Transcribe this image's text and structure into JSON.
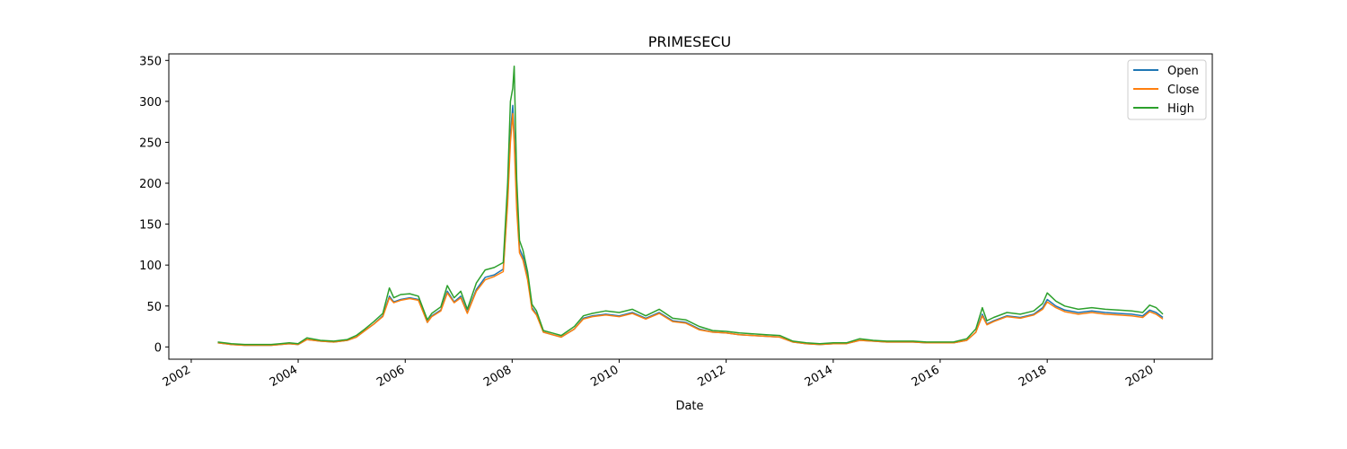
{
  "chart_data": {
    "type": "line",
    "title": "PRIMESECU",
    "xlabel": "Date",
    "ylabel": "",
    "xlim": [
      "2001-08-01",
      "2021-02-01"
    ],
    "ylim": [
      -15,
      358
    ],
    "x_ticks": [
      "2002",
      "2004",
      "2006",
      "2008",
      "2010",
      "2012",
      "2014",
      "2016",
      "2018",
      "2020"
    ],
    "y_ticks": [
      0,
      50,
      100,
      150,
      200,
      250,
      300,
      350
    ],
    "grid": false,
    "legend_position": "top-right",
    "colors": {
      "Open": "#1f77b4",
      "Close": "#ff7f0e",
      "High": "#2ca02c"
    },
    "x": [
      "2002-07-01",
      "2002-10-01",
      "2003-01-01",
      "2003-04-01",
      "2003-07-01",
      "2003-09-01",
      "2003-11-01",
      "2004-01-01",
      "2004-03-01",
      "2004-06-01",
      "2004-09-01",
      "2004-12-01",
      "2005-02-01",
      "2005-04-01",
      "2005-06-01",
      "2005-08-01",
      "2005-09-15",
      "2005-10-15",
      "2005-12-01",
      "2006-02-01",
      "2006-04-01",
      "2006-06-01",
      "2006-07-01",
      "2006-09-01",
      "2006-10-15",
      "2006-12-01",
      "2007-01-15",
      "2007-03-01",
      "2007-05-01",
      "2007-07-01",
      "2007-09-01",
      "2007-11-01",
      "2007-12-01",
      "2007-12-20",
      "2008-01-05",
      "2008-01-15",
      "2008-02-01",
      "2008-02-20",
      "2008-03-15",
      "2008-04-15",
      "2008-05-15",
      "2008-06-15",
      "2008-08-01",
      "2008-10-01",
      "2008-12-01",
      "2009-03-01",
      "2009-05-01",
      "2009-07-01",
      "2009-10-01",
      "2010-01-01",
      "2010-04-01",
      "2010-07-01",
      "2010-10-01",
      "2011-01-01",
      "2011-04-01",
      "2011-07-01",
      "2011-10-01",
      "2012-01-01",
      "2012-04-01",
      "2012-07-01",
      "2012-10-01",
      "2013-01-01",
      "2013-04-01",
      "2013-07-01",
      "2013-10-01",
      "2014-01-01",
      "2014-04-01",
      "2014-07-01",
      "2014-10-01",
      "2015-01-01",
      "2015-04-01",
      "2015-07-01",
      "2015-10-01",
      "2016-01-01",
      "2016-04-01",
      "2016-07-01",
      "2016-09-01",
      "2016-10-15",
      "2016-11-15",
      "2017-01-01",
      "2017-04-01",
      "2017-07-01",
      "2017-10-01",
      "2017-12-01",
      "2018-01-01",
      "2018-03-01",
      "2018-05-01",
      "2018-08-01",
      "2018-11-01",
      "2019-02-01",
      "2019-05-01",
      "2019-08-01",
      "2019-10-15",
      "2019-12-01",
      "2020-01-15",
      "2020-03-01"
    ],
    "series": [
      {
        "name": "Open",
        "values": [
          5,
          3,
          2,
          2,
          2,
          3,
          4,
          3,
          9,
          7,
          6,
          8,
          12,
          20,
          28,
          38,
          62,
          55,
          58,
          60,
          58,
          30,
          38,
          45,
          68,
          55,
          62,
          42,
          70,
          85,
          88,
          95,
          180,
          260,
          295,
          260,
          175,
          120,
          110,
          85,
          48,
          40,
          18,
          15,
          12,
          22,
          35,
          38,
          40,
          38,
          42,
          35,
          42,
          32,
          30,
          22,
          18,
          17,
          15,
          14,
          13,
          12,
          6,
          4,
          3,
          4,
          4,
          8,
          7,
          6,
          6,
          6,
          5,
          5,
          5,
          8,
          18,
          40,
          28,
          32,
          38,
          36,
          40,
          48,
          58,
          50,
          45,
          42,
          44,
          42,
          41,
          40,
          38,
          45,
          42,
          36
        ]
      },
      {
        "name": "Close",
        "values": [
          5,
          3,
          2,
          2,
          2,
          3,
          4,
          3,
          9,
          7,
          6,
          8,
          12,
          20,
          28,
          37,
          60,
          54,
          57,
          59,
          57,
          30,
          37,
          44,
          66,
          54,
          60,
          41,
          68,
          82,
          86,
          92,
          175,
          250,
          285,
          250,
          168,
          115,
          106,
          82,
          46,
          39,
          18,
          15,
          12,
          22,
          34,
          37,
          39,
          37,
          41,
          34,
          41,
          31,
          29,
          21,
          18,
          17,
          15,
          14,
          13,
          12,
          6,
          4,
          3,
          4,
          4,
          8,
          7,
          6,
          6,
          6,
          5,
          5,
          5,
          8,
          18,
          38,
          27,
          31,
          37,
          35,
          39,
          46,
          55,
          48,
          43,
          40,
          42,
          40,
          39,
          38,
          36,
          43,
          40,
          34
        ]
      },
      {
        "name": "High",
        "values": [
          6,
          4,
          3,
          3,
          3,
          4,
          5,
          4,
          11,
          8,
          7,
          9,
          14,
          22,
          31,
          41,
          72,
          60,
          64,
          65,
          62,
          33,
          41,
          49,
          75,
          60,
          68,
          46,
          78,
          94,
          97,
          103,
          200,
          300,
          316,
          343,
          205,
          130,
          118,
          92,
          52,
          44,
          20,
          17,
          14,
          25,
          38,
          41,
          44,
          42,
          46,
          38,
          46,
          35,
          33,
          25,
          20,
          19,
          17,
          16,
          15,
          14,
          7,
          5,
          4,
          5,
          5,
          10,
          8,
          7,
          7,
          7,
          6,
          6,
          6,
          10,
          22,
          48,
          32,
          36,
          42,
          40,
          44,
          53,
          66,
          56,
          50,
          46,
          48,
          46,
          45,
          44,
          42,
          51,
          48,
          40
        ]
      }
    ]
  }
}
